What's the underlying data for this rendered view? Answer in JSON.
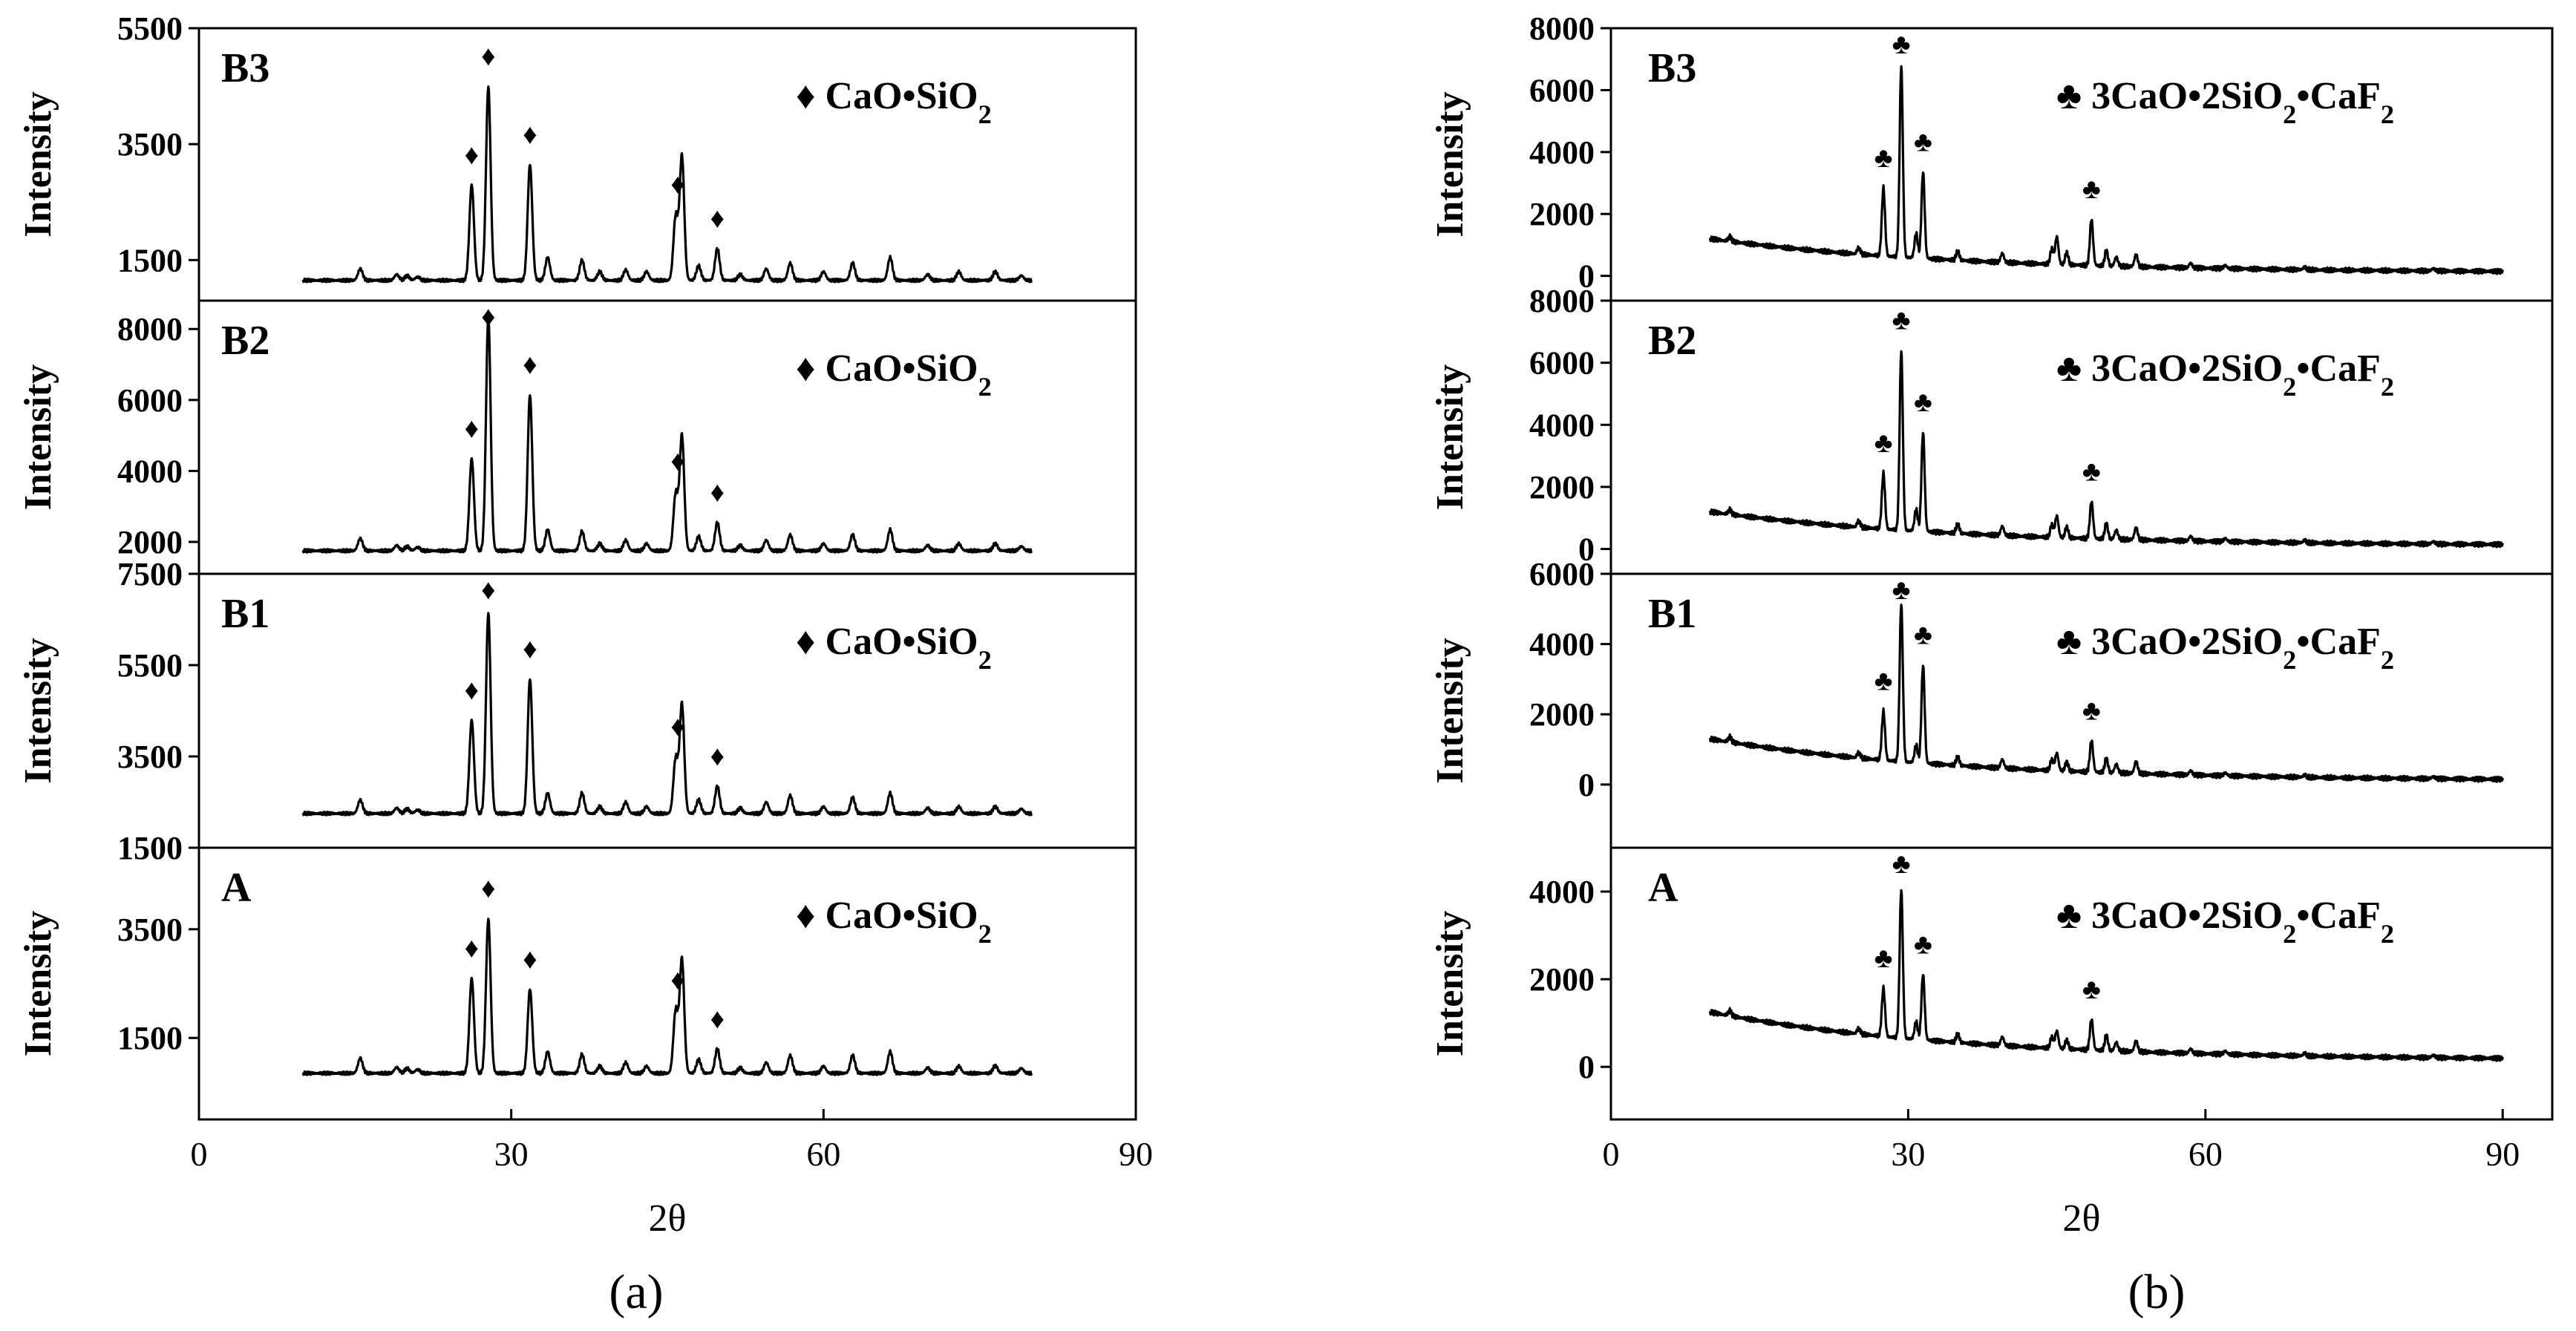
{
  "figure": {
    "caption_a": "(a)",
    "caption_b": "(b)"
  },
  "chart_data": [
    {
      "id": "a",
      "type": "line",
      "caption": "(a)",
      "xlabel": "2θ",
      "xlim": [
        0,
        90
      ],
      "xticks": [
        "0",
        "30",
        "60",
        "90"
      ],
      "ylabel": "Intensity",
      "marker_symbol": "♦",
      "panels": [
        {
          "label": "B3",
          "legend": "♦ CaO•SiO₂",
          "ylim": [
            800,
            5500
          ],
          "yticks": [
            1500,
            3500,
            5500
          ],
          "ytick_labels": [
            "1500",
            "3500",
            "5500"
          ],
          "baseline": 1150,
          "peaks": [
            [
              15.5,
              200
            ],
            [
              19,
              100
            ],
            [
              20,
              80
            ],
            [
              21,
              60
            ],
            [
              26.2,
              1650
            ],
            [
              27.8,
              3350
            ],
            [
              31.8,
              2000
            ],
            [
              33.5,
              400
            ],
            [
              36.8,
              350
            ],
            [
              38.5,
              150
            ],
            [
              41,
              180
            ],
            [
              43,
              150
            ],
            [
              45.8,
              1100
            ],
            [
              46.4,
              2150
            ],
            [
              48,
              250
            ],
            [
              49.8,
              550
            ],
            [
              52,
              100
            ],
            [
              54.5,
              200
            ],
            [
              56.8,
              300
            ],
            [
              60,
              150
            ],
            [
              62.8,
              300
            ],
            [
              66.4,
              400
            ],
            [
              70,
              100
            ],
            [
              73,
              150
            ],
            [
              76.5,
              150
            ],
            [
              79,
              80
            ]
          ],
          "markers": [
            26.2,
            27.8,
            31.8,
            46.0,
            49.8
          ]
        },
        {
          "label": "B2",
          "legend": "♦ CaO•SiO₂",
          "ylim": [
            1100,
            8800
          ],
          "yticks": [
            2000,
            4000,
            6000,
            8000
          ],
          "ytick_labels": [
            "2000",
            "4000",
            "6000",
            "8000"
          ],
          "baseline": 1750,
          "peaks": [
            [
              15.5,
              350
            ],
            [
              19,
              150
            ],
            [
              20,
              120
            ],
            [
              21,
              100
            ],
            [
              26.2,
              2600
            ],
            [
              27.8,
              6600
            ],
            [
              31.8,
              4400
            ],
            [
              33.5,
              600
            ],
            [
              36.8,
              550
            ],
            [
              38.5,
              200
            ],
            [
              41,
              300
            ],
            [
              43,
              200
            ],
            [
              45.8,
              1600
            ],
            [
              46.4,
              3250
            ],
            [
              48,
              400
            ],
            [
              49.8,
              800
            ],
            [
              52,
              150
            ],
            [
              54.5,
              300
            ],
            [
              56.8,
              450
            ],
            [
              60,
              200
            ],
            [
              62.8,
              450
            ],
            [
              66.4,
              600
            ],
            [
              70,
              150
            ],
            [
              73,
              200
            ],
            [
              76.5,
              200
            ],
            [
              79,
              120
            ]
          ],
          "markers": [
            26.2,
            27.8,
            31.8,
            46.0,
            49.8
          ]
        },
        {
          "label": "B1",
          "legend": "♦ CaO•SiO₂",
          "ylim": [
            1500,
            7500
          ],
          "yticks": [
            1500,
            3500,
            5500,
            7500
          ],
          "ytick_labels": [
            "1500",
            "3500",
            "5500",
            "7500"
          ],
          "baseline": 2250,
          "peaks": [
            [
              15.5,
              300
            ],
            [
              19,
              120
            ],
            [
              20,
              100
            ],
            [
              21,
              80
            ],
            [
              26.2,
              2050
            ],
            [
              27.8,
              4400
            ],
            [
              31.8,
              2950
            ],
            [
              33.5,
              450
            ],
            [
              36.8,
              450
            ],
            [
              38.5,
              150
            ],
            [
              41,
              250
            ],
            [
              43,
              150
            ],
            [
              45.8,
              1200
            ],
            [
              46.4,
              2400
            ],
            [
              48,
              300
            ],
            [
              49.8,
              600
            ],
            [
              52,
              120
            ],
            [
              54.5,
              250
            ],
            [
              56.8,
              400
            ],
            [
              60,
              150
            ],
            [
              62.8,
              350
            ],
            [
              66.4,
              450
            ],
            [
              70,
              120
            ],
            [
              73,
              150
            ],
            [
              76.5,
              150
            ],
            [
              79,
              100
            ]
          ],
          "markers": [
            26.2,
            27.8,
            31.8,
            46.0,
            49.8
          ]
        },
        {
          "label": "A",
          "legend": "♦ CaO•SiO₂",
          "ylim": [
            0,
            5000
          ],
          "yticks": [
            1500,
            3500
          ],
          "ytick_labels": [
            "1500",
            "3500"
          ],
          "baseline": 850,
          "peaks": [
            [
              15.5,
              280
            ],
            [
              19,
              110
            ],
            [
              20,
              90
            ],
            [
              21,
              70
            ],
            [
              26.2,
              1750
            ],
            [
              27.8,
              2850
            ],
            [
              31.8,
              1550
            ],
            [
              33.5,
              400
            ],
            [
              36.8,
              350
            ],
            [
              38.5,
              130
            ],
            [
              41,
              200
            ],
            [
              43,
              130
            ],
            [
              45.8,
              1150
            ],
            [
              46.4,
              2100
            ],
            [
              48,
              250
            ],
            [
              49.8,
              450
            ],
            [
              52,
              100
            ],
            [
              54.5,
              200
            ],
            [
              56.8,
              330
            ],
            [
              60,
              130
            ],
            [
              62.8,
              330
            ],
            [
              66.4,
              400
            ],
            [
              70,
              100
            ],
            [
              73,
              130
            ],
            [
              76.5,
              140
            ],
            [
              79,
              90
            ]
          ],
          "markers": [
            26.2,
            27.8,
            31.8,
            46.0,
            49.8
          ]
        }
      ]
    },
    {
      "id": "b",
      "type": "line",
      "caption": "(b)",
      "xlabel": "2θ",
      "xlim": [
        0,
        95
      ],
      "xticks": [
        "0",
        "30",
        "60",
        "90"
      ],
      "ylabel": "Intensity",
      "marker_symbol": "♣",
      "panels": [
        {
          "label": "B3",
          "legend": "♣ 3CaO•2SiO₂•CaF₂",
          "ylim": [
            -800,
            8000
          ],
          "yticks": [
            0,
            2000,
            4000,
            6000,
            8000
          ],
          "ytick_labels": [
            "0",
            "2000",
            "4000",
            "6000",
            "8000"
          ],
          "bg_start": 1200,
          "bg_end": 100,
          "peaks": [
            [
              12,
              150
            ],
            [
              25,
              200
            ],
            [
              27.5,
              2200
            ],
            [
              29.3,
              6200
            ],
            [
              30.8,
              800
            ],
            [
              31.5,
              2800
            ],
            [
              35,
              300
            ],
            [
              39.5,
              300
            ],
            [
              44.5,
              500
            ],
            [
              45,
              900
            ],
            [
              46,
              400
            ],
            [
              48.5,
              1500
            ],
            [
              50,
              500
            ],
            [
              51,
              300
            ],
            [
              53,
              400
            ],
            [
              58.5,
              150
            ],
            [
              62,
              100
            ],
            [
              70,
              80
            ],
            [
              83,
              80
            ]
          ],
          "markers": [
            27.5,
            29.3,
            31.5,
            48.5
          ]
        },
        {
          "label": "B2",
          "legend": "♣ 3CaO•2SiO₂•CaF₂",
          "ylim": [
            -800,
            8000
          ],
          "yticks": [
            0,
            2000,
            4000,
            6000,
            8000
          ],
          "ytick_labels": [
            "0",
            "2000",
            "4000",
            "6000",
            "8000"
          ],
          "bg_start": 1200,
          "bg_end": 100,
          "peaks": [
            [
              12,
              150
            ],
            [
              25,
              200
            ],
            [
              27.5,
              1800
            ],
            [
              29.3,
              5800
            ],
            [
              30.8,
              700
            ],
            [
              31.5,
              3200
            ],
            [
              35,
              300
            ],
            [
              39.5,
              300
            ],
            [
              44.5,
              400
            ],
            [
              45,
              700
            ],
            [
              46,
              350
            ],
            [
              48.5,
              1200
            ],
            [
              50,
              500
            ],
            [
              51,
              300
            ],
            [
              53,
              400
            ],
            [
              58.5,
              150
            ],
            [
              62,
              100
            ],
            [
              70,
              80
            ],
            [
              83,
              80
            ]
          ],
          "markers": [
            27.5,
            29.3,
            31.5,
            48.5
          ]
        },
        {
          "label": "B1",
          "legend": "♣ 3CaO•2SiO₂•CaF₂",
          "ylim": [
            -1800,
            6000
          ],
          "yticks": [
            0,
            2000,
            4000,
            6000
          ],
          "ytick_labels": [
            "0",
            "2000",
            "4000",
            "6000"
          ],
          "bg_start": 1300,
          "bg_end": 100,
          "peaks": [
            [
              12,
              150
            ],
            [
              25,
              150
            ],
            [
              27.5,
              1400
            ],
            [
              29.3,
              4500
            ],
            [
              30.8,
              500
            ],
            [
              31.5,
              2800
            ],
            [
              35,
              250
            ],
            [
              39.5,
              250
            ],
            [
              44.5,
              300
            ],
            [
              45,
              500
            ],
            [
              46,
              250
            ],
            [
              48.5,
              900
            ],
            [
              50,
              400
            ],
            [
              51,
              250
            ],
            [
              53,
              350
            ],
            [
              58.5,
              120
            ],
            [
              62,
              80
            ],
            [
              70,
              60
            ],
            [
              83,
              60
            ]
          ],
          "markers": [
            27.5,
            29.3,
            31.5,
            48.5
          ]
        },
        {
          "label": "A",
          "legend": "♣ 3CaO•2SiO₂•CaF₂",
          "ylim": [
            -1200,
            5000
          ],
          "yticks": [
            0,
            2000,
            4000
          ],
          "ytick_labels": [
            "0",
            "2000",
            "4000"
          ],
          "bg_start": 1250,
          "bg_end": 150,
          "peaks": [
            [
              12,
              120
            ],
            [
              25,
              120
            ],
            [
              27.5,
              1100
            ],
            [
              29.3,
              3400
            ],
            [
              30.8,
              400
            ],
            [
              31.5,
              1500
            ],
            [
              35,
              200
            ],
            [
              39.5,
              200
            ],
            [
              44.5,
              250
            ],
            [
              45,
              400
            ],
            [
              46,
              200
            ],
            [
              48.5,
              700
            ],
            [
              50,
              350
            ],
            [
              51,
              200
            ],
            [
              53,
              250
            ],
            [
              58.5,
              100
            ],
            [
              62,
              70
            ],
            [
              70,
              60
            ],
            [
              83,
              60
            ]
          ],
          "markers": [
            27.5,
            29.3,
            31.5,
            48.5
          ]
        }
      ]
    }
  ]
}
